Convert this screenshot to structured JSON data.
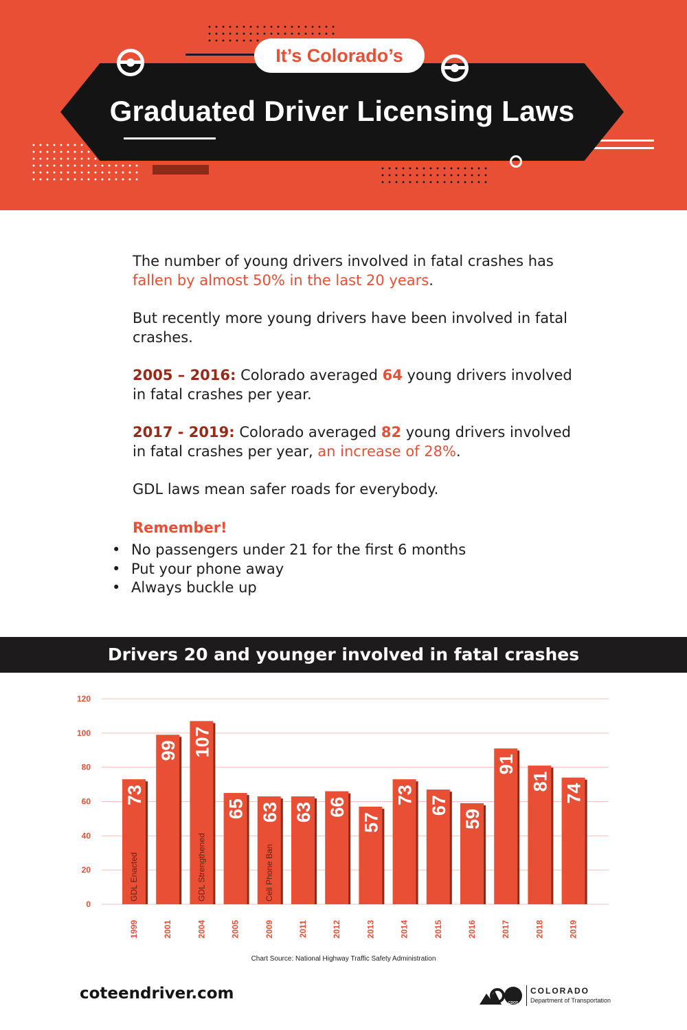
{
  "header": {
    "kicker": "It’s Colorado’s",
    "title": "Graduated Driver Licensing Laws"
  },
  "intro": {
    "p1_text": "The number of young drivers involved in fatal crashes has ",
    "p1_highlight": "fallen by almost 50% in the last 20 years",
    "p1_end": ".",
    "p2": "But recently more young drivers have been involved in fatal crashes.",
    "p3_period": "2005 – 2016:",
    "p3_a": " Colorado averaged ",
    "p3_num": "64",
    "p3_b": " young drivers involved in fatal crashes per year.",
    "p4_period": "2017 - 2019:",
    "p4_a": " Colorado averaged ",
    "p4_num": "82",
    "p4_b": " young drivers involved in fatal crashes per year, ",
    "p4_highlight": "an increase of 28%",
    "p4_end": ".",
    "p5": "GDL laws mean safer roads for everybody."
  },
  "remember": {
    "heading": "Remember!",
    "items": [
      "No passengers under 21 for the first 6 months",
      "Put your phone away",
      "Always buckle up"
    ]
  },
  "colors": {
    "accent": "#e94f35",
    "bar_shadow": "#8e2a17",
    "dark": "#1d1b1b"
  },
  "chart_data": {
    "type": "bar",
    "title": "Drivers 20 and younger involved in fatal crashes",
    "categories": [
      "1999",
      "2001",
      "2004",
      "2005",
      "2009",
      "2011",
      "2012",
      "2013",
      "2014",
      "2015",
      "2016",
      "2017",
      "2018",
      "2019"
    ],
    "values": [
      73,
      99,
      107,
      65,
      63,
      63,
      66,
      57,
      73,
      67,
      59,
      91,
      81,
      74
    ],
    "annotations": [
      {
        "category": "1999",
        "text": "GDL Enacted"
      },
      {
        "category": "2004",
        "text": "GDL Strengthened"
      },
      {
        "category": "2009",
        "text": "Cell Phone Ban"
      }
    ],
    "yticks": [
      0,
      20,
      40,
      60,
      80,
      100,
      120
    ],
    "ylim": [
      0,
      120
    ],
    "xlabel": "",
    "ylabel": "",
    "grid": true,
    "source": "Chart Source: National Highway Traffic Safety Administration"
  },
  "footer": {
    "website": "coteendriver.com",
    "logo_name": "COLORADO",
    "logo_dept": "Department of Transportation",
    "logo_mark_text": "CDOT"
  }
}
